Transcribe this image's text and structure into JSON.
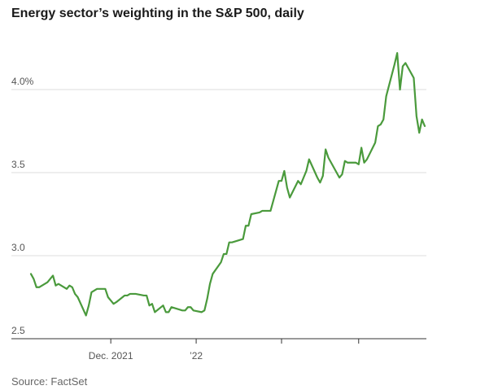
{
  "title": "Energy sector’s weighting in the S&P 500, daily",
  "source": "Source: FactSet",
  "chart_data": {
    "type": "line",
    "title": "Energy sector’s weighting in the S&P 500, daily",
    "xlabel": "",
    "ylabel": "",
    "ylim": [
      2.5,
      4.5
    ],
    "y_ticks": [
      {
        "value": 2.5,
        "label": "2.5"
      },
      {
        "value": 3.0,
        "label": "3.0"
      },
      {
        "value": 3.5,
        "label": "3.5"
      },
      {
        "value": 4.0,
        "label": "4.0%"
      }
    ],
    "x_ticks": [
      {
        "date": "2021-12-01",
        "label": "Dec. 2021"
      },
      {
        "date": "2022-01-01",
        "label": "’22"
      },
      {
        "date": "2022-02-01",
        "label": ""
      },
      {
        "date": "2022-03-01",
        "label": ""
      }
    ],
    "grid": true,
    "line_color": "#4a9a3c",
    "series": [
      {
        "name": "",
        "points": [
          [
            "2021-11-02",
            2.89
          ],
          [
            "2021-11-03",
            2.86
          ],
          [
            "2021-11-04",
            2.81
          ],
          [
            "2021-11-05",
            2.81
          ],
          [
            "2021-11-08",
            2.84
          ],
          [
            "2021-11-09",
            2.86
          ],
          [
            "2021-11-10",
            2.88
          ],
          [
            "2021-11-11",
            2.82
          ],
          [
            "2021-11-12",
            2.83
          ],
          [
            "2021-11-15",
            2.8
          ],
          [
            "2021-11-16",
            2.82
          ],
          [
            "2021-11-17",
            2.81
          ],
          [
            "2021-11-18",
            2.77
          ],
          [
            "2021-11-19",
            2.75
          ],
          [
            "2021-11-22",
            2.64
          ],
          [
            "2021-11-23",
            2.7
          ],
          [
            "2021-11-24",
            2.78
          ],
          [
            "2021-11-26",
            2.8
          ],
          [
            "2021-11-29",
            2.8
          ],
          [
            "2021-11-30",
            2.75
          ],
          [
            "2021-12-01",
            2.73
          ],
          [
            "2021-12-02",
            2.71
          ],
          [
            "2021-12-03",
            2.72
          ],
          [
            "2021-12-06",
            2.76
          ],
          [
            "2021-12-07",
            2.76
          ],
          [
            "2021-12-08",
            2.77
          ],
          [
            "2021-12-09",
            2.77
          ],
          [
            "2021-12-10",
            2.77
          ],
          [
            "2021-12-13",
            2.76
          ],
          [
            "2021-12-14",
            2.76
          ],
          [
            "2021-12-15",
            2.7
          ],
          [
            "2021-12-16",
            2.71
          ],
          [
            "2021-12-17",
            2.66
          ],
          [
            "2021-12-20",
            2.7
          ],
          [
            "2021-12-21",
            2.66
          ],
          [
            "2021-12-22",
            2.66
          ],
          [
            "2021-12-23",
            2.69
          ],
          [
            "2021-12-27",
            2.67
          ],
          [
            "2021-12-28",
            2.67
          ],
          [
            "2021-12-29",
            2.69
          ],
          [
            "2021-12-30",
            2.69
          ],
          [
            "2021-12-31",
            2.67
          ],
          [
            "2022-01-03",
            2.66
          ],
          [
            "2022-01-04",
            2.67
          ],
          [
            "2022-01-05",
            2.74
          ],
          [
            "2022-01-06",
            2.83
          ],
          [
            "2022-01-07",
            2.89
          ],
          [
            "2022-01-10",
            2.96
          ],
          [
            "2022-01-11",
            3.01
          ],
          [
            "2022-01-12",
            3.01
          ],
          [
            "2022-01-13",
            3.08
          ],
          [
            "2022-01-14",
            3.08
          ],
          [
            "2022-01-18",
            3.1
          ],
          [
            "2022-01-19",
            3.18
          ],
          [
            "2022-01-20",
            3.18
          ],
          [
            "2022-01-21",
            3.25
          ],
          [
            "2022-01-24",
            3.26
          ],
          [
            "2022-01-25",
            3.27
          ],
          [
            "2022-01-26",
            3.27
          ],
          [
            "2022-01-27",
            3.27
          ],
          [
            "2022-01-28",
            3.27
          ],
          [
            "2022-01-31",
            3.45
          ],
          [
            "2022-02-01",
            3.45
          ],
          [
            "2022-02-02",
            3.51
          ],
          [
            "2022-02-03",
            3.41
          ],
          [
            "2022-02-04",
            3.35
          ],
          [
            "2022-02-07",
            3.45
          ],
          [
            "2022-02-08",
            3.43
          ],
          [
            "2022-02-09",
            3.47
          ],
          [
            "2022-02-10",
            3.51
          ],
          [
            "2022-02-11",
            3.58
          ],
          [
            "2022-02-14",
            3.47
          ],
          [
            "2022-02-15",
            3.44
          ],
          [
            "2022-02-16",
            3.48
          ],
          [
            "2022-02-17",
            3.64
          ],
          [
            "2022-02-18",
            3.59
          ],
          [
            "2022-02-22",
            3.47
          ],
          [
            "2022-02-23",
            3.49
          ],
          [
            "2022-02-24",
            3.57
          ],
          [
            "2022-02-25",
            3.56
          ],
          [
            "2022-02-28",
            3.56
          ],
          [
            "2022-03-01",
            3.55
          ],
          [
            "2022-03-02",
            3.65
          ],
          [
            "2022-03-03",
            3.56
          ],
          [
            "2022-03-04",
            3.58
          ],
          [
            "2022-03-07",
            3.68
          ],
          [
            "2022-03-08",
            3.78
          ],
          [
            "2022-03-09",
            3.79
          ],
          [
            "2022-03-10",
            3.82
          ],
          [
            "2022-03-11",
            3.96
          ],
          [
            "2022-03-14",
            4.15
          ],
          [
            "2022-03-15",
            4.22
          ],
          [
            "2022-03-16",
            4.0
          ],
          [
            "2022-03-17",
            4.14
          ],
          [
            "2022-03-18",
            4.16
          ],
          [
            "2022-03-21",
            4.07
          ],
          [
            "2022-03-22",
            3.84
          ],
          [
            "2022-03-23",
            3.74
          ],
          [
            "2022-03-24",
            3.82
          ],
          [
            "2022-03-25",
            3.78
          ]
        ]
      }
    ]
  }
}
